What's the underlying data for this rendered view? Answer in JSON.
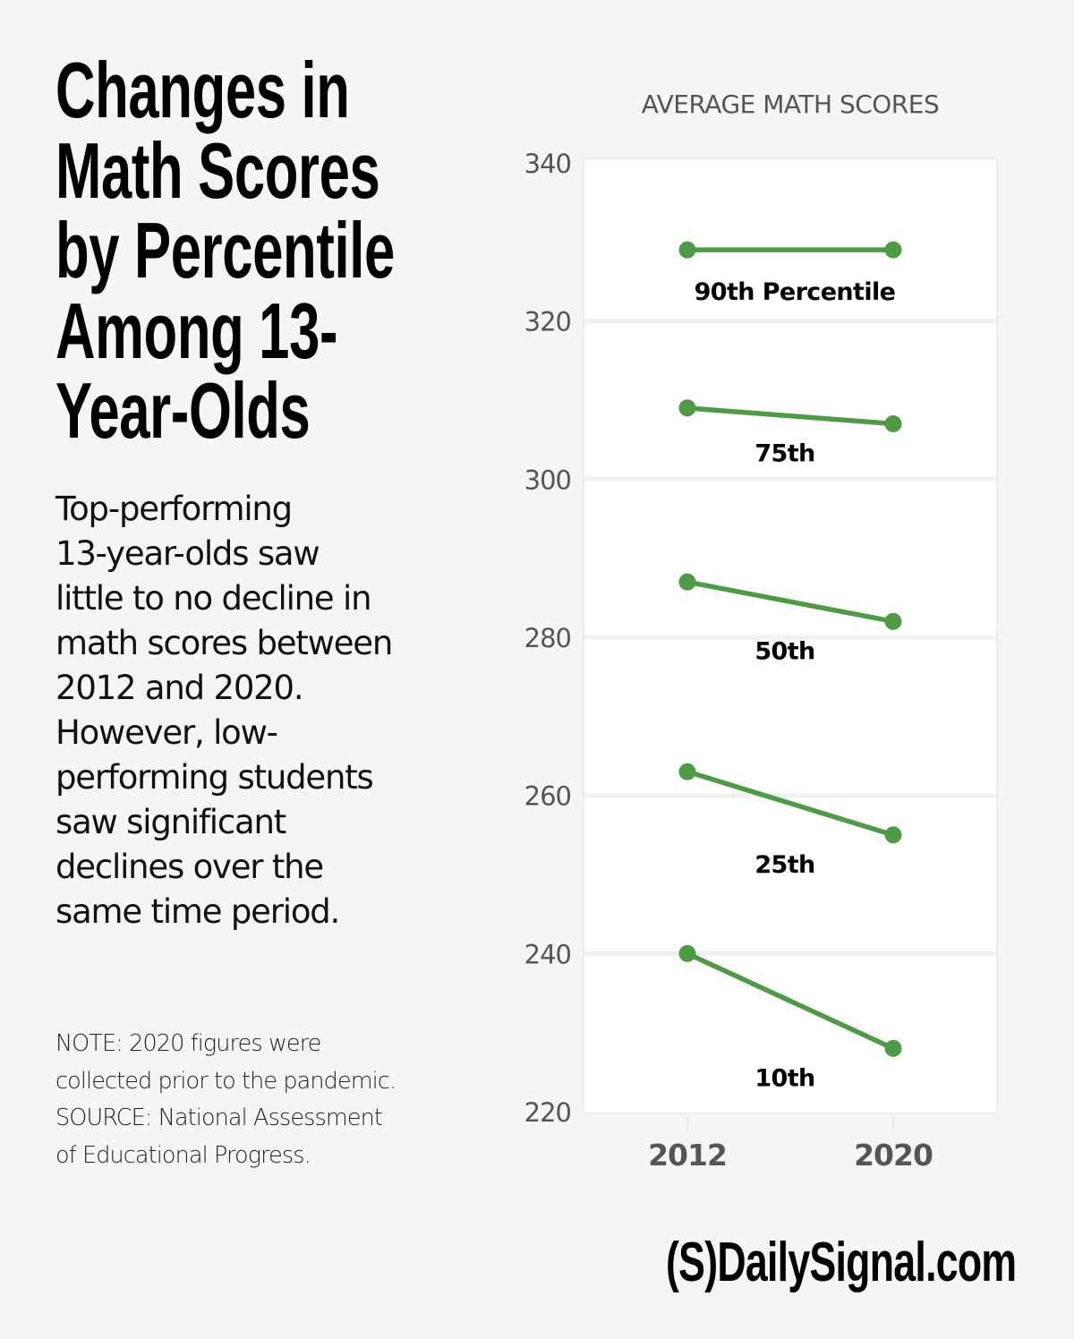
{
  "title_lines": [
    "Changes in",
    "Math Scores",
    "by Percentile",
    "Among 13-",
    "Year-Olds"
  ],
  "description_lines": [
    "Top-performing",
    "13-year-olds saw",
    "little to no decline in",
    "math scores between",
    "2012 and 2020.",
    "However, low-",
    "performing students",
    "saw significant",
    "declines over the",
    "same time period."
  ],
  "note_lines": [
    "NOTE: 2020 figures were",
    "collected prior to the pandemic.",
    "SOURCE: National Assessment",
    "of Educational Progress."
  ],
  "logo": {
    "mark": "(S)",
    "text": "DailySignal.com"
  },
  "colors": {
    "line": "#4e9a47",
    "background": "#f4f5f7",
    "panel": "#ffffff",
    "grid": "#eff0f2",
    "axis_text": "#555555"
  },
  "chart_data": {
    "type": "line",
    "title": "AVERAGE MATH SCORES",
    "xlabel": "",
    "ylabel": "",
    "categories": [
      "2012",
      "2020"
    ],
    "ylim": [
      220,
      340
    ],
    "yticks": [
      340,
      320,
      300,
      280,
      260,
      240,
      220
    ],
    "grid": true,
    "series": [
      {
        "name": "90th Percentile",
        "values": [
          329,
          329
        ]
      },
      {
        "name": "75th",
        "values": [
          309,
          307
        ]
      },
      {
        "name": "50th",
        "values": [
          287,
          282
        ]
      },
      {
        "name": "25th",
        "values": [
          263,
          255
        ]
      },
      {
        "name": "10th",
        "values": [
          240,
          228
        ]
      }
    ]
  }
}
